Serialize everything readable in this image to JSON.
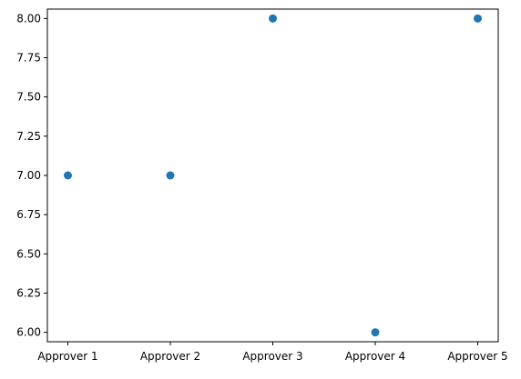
{
  "chart_data": {
    "type": "scatter",
    "title": "",
    "xlabel": "",
    "ylabel": "",
    "categories": [
      "Approver 1",
      "Approver 2",
      "Approver 3",
      "Approver 4",
      "Approver 5"
    ],
    "values": [
      7,
      7,
      8,
      6,
      8
    ],
    "ylim": [
      5.94,
      8.06
    ],
    "yticks": [
      "6.00",
      "6.25",
      "6.50",
      "6.75",
      "7.00",
      "7.25",
      "7.50",
      "7.75",
      "8.00"
    ],
    "grid": false,
    "legend": "none",
    "colors": {
      "marker": "#1f77b4",
      "axis": "#000000",
      "background": "#ffffff"
    }
  }
}
